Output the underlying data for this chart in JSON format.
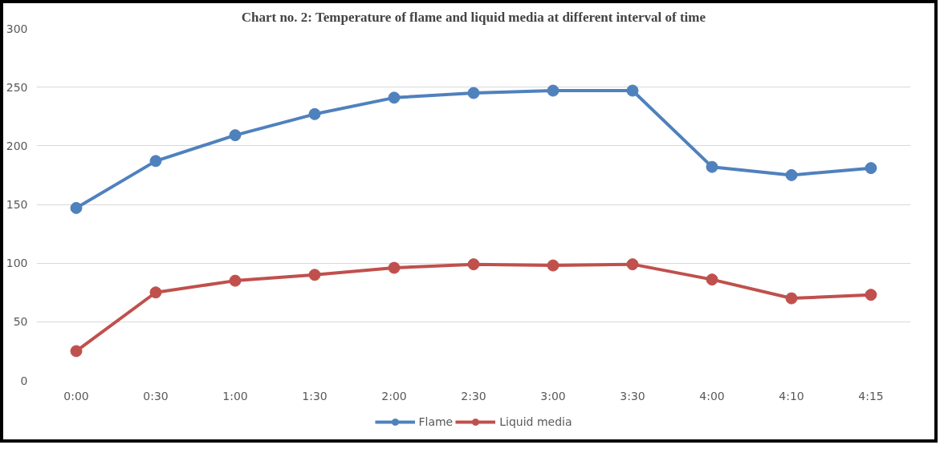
{
  "chart_data": {
    "type": "line",
    "title": "Chart no. 2: Temperature of flame and liquid media at different interval of time",
    "categories": [
      "0:00",
      "0:30",
      "1:00",
      "1:30",
      "2:00",
      "2:30",
      "3:00",
      "3:30",
      "4:00",
      "4:10",
      "4:15"
    ],
    "series": [
      {
        "name": "Flame",
        "color": "#4f81bd",
        "values": [
          147,
          187,
          209,
          227,
          241,
          245,
          247,
          247,
          182,
          175,
          181
        ]
      },
      {
        "name": "Liquid media",
        "color": "#c0504d",
        "values": [
          25,
          75,
          85,
          90,
          96,
          99,
          98,
          99,
          86,
          70,
          73
        ]
      }
    ],
    "ylim": [
      0,
      300
    ],
    "yticks": [
      0,
      50,
      100,
      150,
      200,
      250,
      300
    ],
    "grid": "y",
    "legend": "bottom",
    "marker": "circle",
    "line_style": "solid"
  }
}
